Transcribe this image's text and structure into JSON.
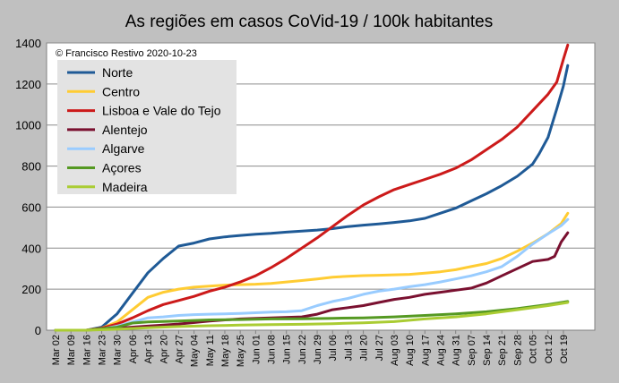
{
  "chart_data": {
    "type": "line",
    "title": "As regiões em casos CoVid-19 / 100k habitantes",
    "annotation": "© Francisco Restivo 2020-10-23",
    "xlabel": "",
    "ylabel": "",
    "ylim": [
      0,
      1400
    ],
    "yticks": [
      0,
      200,
      400,
      600,
      800,
      1000,
      1200,
      1400
    ],
    "grid": true,
    "legend_position": "top-left",
    "x_ticks": [
      "Mar 02",
      "Mar 09",
      "Mar 16",
      "Mar 23",
      "Mar 30",
      "Apr 06",
      "Apr 13",
      "Apr 20",
      "Apr 27",
      "May 04",
      "May 11",
      "May 18",
      "May 25",
      "Jun 01",
      "Jun 08",
      "Jun 15",
      "Jun 22",
      "Jun 29",
      "Jul 06",
      "Jul 13",
      "Jul 20",
      "Jul 27",
      "Aug 03",
      "Aug 10",
      "Aug 17",
      "Aug 24",
      "Aug 31",
      "Sep 07",
      "Sep 14",
      "Sep 21",
      "Sep 28",
      "Oct 05",
      "Oct 12",
      "Oct 19"
    ],
    "x_end_day": 233,
    "series": [
      {
        "name": "Norte",
        "color": "#1f5a96",
        "points": [
          [
            0,
            0
          ],
          [
            14,
            0
          ],
          [
            21,
            15
          ],
          [
            28,
            80
          ],
          [
            35,
            180
          ],
          [
            42,
            280
          ],
          [
            49,
            350
          ],
          [
            56,
            410
          ],
          [
            63,
            425
          ],
          [
            70,
            445
          ],
          [
            77,
            455
          ],
          [
            84,
            462
          ],
          [
            91,
            468
          ],
          [
            98,
            472
          ],
          [
            105,
            478
          ],
          [
            112,
            483
          ],
          [
            119,
            488
          ],
          [
            126,
            495
          ],
          [
            133,
            505
          ],
          [
            140,
            512
          ],
          [
            147,
            518
          ],
          [
            154,
            525
          ],
          [
            161,
            533
          ],
          [
            168,
            545
          ],
          [
            175,
            570
          ],
          [
            182,
            595
          ],
          [
            189,
            630
          ],
          [
            196,
            665
          ],
          [
            203,
            705
          ],
          [
            210,
            750
          ],
          [
            217,
            810
          ],
          [
            220,
            860
          ],
          [
            224,
            940
          ],
          [
            228,
            1080
          ],
          [
            231,
            1190
          ],
          [
            233,
            1290
          ]
        ]
      },
      {
        "name": "Centro",
        "color": "#ffcc33",
        "points": [
          [
            0,
            0
          ],
          [
            14,
            0
          ],
          [
            21,
            10
          ],
          [
            28,
            40
          ],
          [
            35,
            100
          ],
          [
            42,
            160
          ],
          [
            49,
            185
          ],
          [
            56,
            200
          ],
          [
            63,
            210
          ],
          [
            70,
            215
          ],
          [
            77,
            220
          ],
          [
            84,
            222
          ],
          [
            91,
            224
          ],
          [
            98,
            228
          ],
          [
            105,
            235
          ],
          [
            112,
            242
          ],
          [
            119,
            250
          ],
          [
            126,
            258
          ],
          [
            133,
            263
          ],
          [
            140,
            266
          ],
          [
            147,
            268
          ],
          [
            154,
            270
          ],
          [
            161,
            272
          ],
          [
            168,
            278
          ],
          [
            175,
            285
          ],
          [
            182,
            295
          ],
          [
            189,
            310
          ],
          [
            196,
            325
          ],
          [
            203,
            350
          ],
          [
            210,
            385
          ],
          [
            217,
            425
          ],
          [
            224,
            470
          ],
          [
            230,
            520
          ],
          [
            233,
            570
          ]
        ]
      },
      {
        "name": "Lisboa e Vale do Tejo",
        "color": "#cc1a1a",
        "points": [
          [
            0,
            0
          ],
          [
            14,
            0
          ],
          [
            21,
            10
          ],
          [
            28,
            30
          ],
          [
            35,
            60
          ],
          [
            42,
            95
          ],
          [
            49,
            125
          ],
          [
            56,
            145
          ],
          [
            63,
            165
          ],
          [
            70,
            190
          ],
          [
            77,
            210
          ],
          [
            84,
            235
          ],
          [
            91,
            265
          ],
          [
            98,
            305
          ],
          [
            105,
            350
          ],
          [
            112,
            400
          ],
          [
            119,
            450
          ],
          [
            126,
            505
          ],
          [
            133,
            560
          ],
          [
            140,
            610
          ],
          [
            147,
            650
          ],
          [
            154,
            685
          ],
          [
            161,
            710
          ],
          [
            168,
            735
          ],
          [
            175,
            760
          ],
          [
            182,
            790
          ],
          [
            189,
            830
          ],
          [
            196,
            880
          ],
          [
            203,
            930
          ],
          [
            210,
            990
          ],
          [
            217,
            1070
          ],
          [
            224,
            1150
          ],
          [
            228,
            1210
          ],
          [
            231,
            1320
          ],
          [
            233,
            1390
          ]
        ]
      },
      {
        "name": "Alentejo",
        "color": "#7a1030",
        "points": [
          [
            0,
            0
          ],
          [
            14,
            0
          ],
          [
            28,
            10
          ],
          [
            42,
            20
          ],
          [
            56,
            30
          ],
          [
            70,
            45
          ],
          [
            84,
            55
          ],
          [
            98,
            60
          ],
          [
            112,
            65
          ],
          [
            119,
            78
          ],
          [
            126,
            100
          ],
          [
            133,
            110
          ],
          [
            140,
            120
          ],
          [
            147,
            135
          ],
          [
            154,
            150
          ],
          [
            161,
            160
          ],
          [
            168,
            175
          ],
          [
            175,
            185
          ],
          [
            182,
            195
          ],
          [
            189,
            205
          ],
          [
            196,
            230
          ],
          [
            203,
            265
          ],
          [
            210,
            300
          ],
          [
            217,
            335
          ],
          [
            224,
            345
          ],
          [
            227,
            360
          ],
          [
            230,
            430
          ],
          [
            233,
            475
          ]
        ]
      },
      {
        "name": "Algarve",
        "color": "#99ccff",
        "points": [
          [
            0,
            0
          ],
          [
            14,
            0
          ],
          [
            21,
            5
          ],
          [
            28,
            20
          ],
          [
            35,
            40
          ],
          [
            42,
            60
          ],
          [
            49,
            65
          ],
          [
            56,
            72
          ],
          [
            63,
            76
          ],
          [
            70,
            78
          ],
          [
            77,
            80
          ],
          [
            84,
            82
          ],
          [
            91,
            85
          ],
          [
            98,
            88
          ],
          [
            105,
            90
          ],
          [
            112,
            95
          ],
          [
            119,
            120
          ],
          [
            126,
            140
          ],
          [
            133,
            155
          ],
          [
            140,
            175
          ],
          [
            147,
            190
          ],
          [
            154,
            200
          ],
          [
            161,
            212
          ],
          [
            168,
            222
          ],
          [
            175,
            235
          ],
          [
            182,
            250
          ],
          [
            189,
            265
          ],
          [
            196,
            285
          ],
          [
            203,
            310
          ],
          [
            210,
            360
          ],
          [
            217,
            420
          ],
          [
            224,
            470
          ],
          [
            230,
            510
          ],
          [
            233,
            540
          ]
        ]
      },
      {
        "name": "Açores",
        "color": "#559922",
        "points": [
          [
            0,
            0
          ],
          [
            14,
            0
          ],
          [
            28,
            15
          ],
          [
            35,
            35
          ],
          [
            42,
            40
          ],
          [
            56,
            45
          ],
          [
            70,
            50
          ],
          [
            84,
            52
          ],
          [
            98,
            55
          ],
          [
            112,
            56
          ],
          [
            126,
            58
          ],
          [
            140,
            60
          ],
          [
            154,
            65
          ],
          [
            168,
            72
          ],
          [
            182,
            80
          ],
          [
            196,
            90
          ],
          [
            210,
            105
          ],
          [
            224,
            125
          ],
          [
            233,
            140
          ]
        ]
      },
      {
        "name": "Madeira",
        "color": "#aacc33",
        "points": [
          [
            0,
            0
          ],
          [
            14,
            0
          ],
          [
            28,
            5
          ],
          [
            42,
            12
          ],
          [
            56,
            18
          ],
          [
            70,
            22
          ],
          [
            84,
            25
          ],
          [
            98,
            27
          ],
          [
            112,
            29
          ],
          [
            126,
            32
          ],
          [
            140,
            36
          ],
          [
            154,
            42
          ],
          [
            168,
            55
          ],
          [
            182,
            65
          ],
          [
            196,
            80
          ],
          [
            210,
            100
          ],
          [
            224,
            120
          ],
          [
            233,
            135
          ]
        ]
      }
    ]
  }
}
